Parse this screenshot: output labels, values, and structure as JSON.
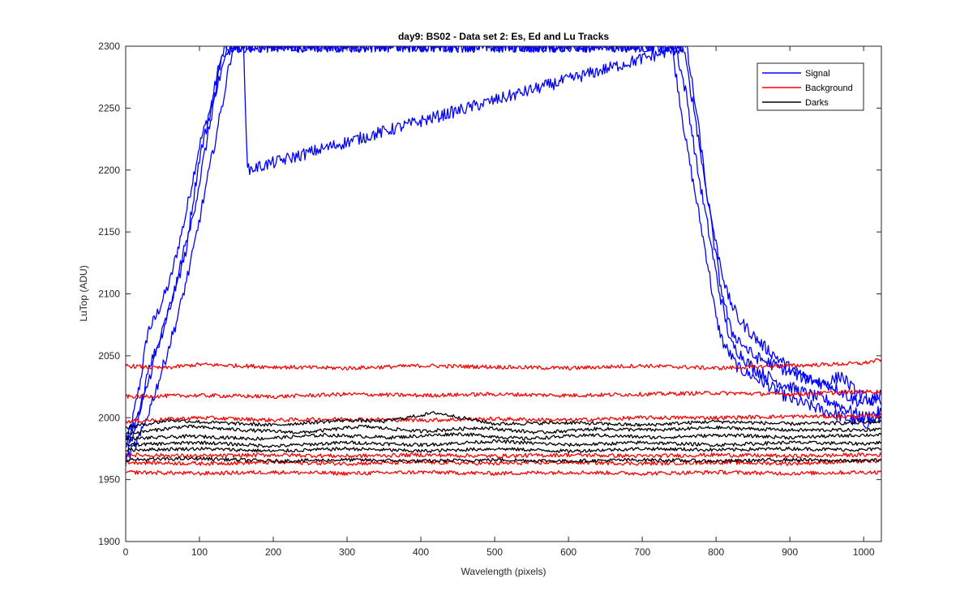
{
  "chart_data": {
    "type": "line",
    "title": "day9: BS02 - Data set 2: Es, Ed and Lu Tracks",
    "xlabel": "Wavelength (pixels)",
    "ylabel": "LuTop (ADU)",
    "xlim": [
      0,
      1024
    ],
    "ylim": [
      1900,
      2300
    ],
    "xticks": [
      0,
      100,
      200,
      300,
      400,
      500,
      600,
      700,
      800,
      900,
      1000
    ],
    "yticks": [
      1900,
      1950,
      2000,
      2050,
      2100,
      2150,
      2200,
      2250,
      2300
    ],
    "grid": false,
    "legend_position": "top-right",
    "legend": [
      {
        "label": "Signal",
        "color": "#0000ff"
      },
      {
        "label": "Background",
        "color": "#ff0000"
      },
      {
        "label": "Darks",
        "color": "#000000"
      }
    ],
    "series": [
      {
        "name": "Signal",
        "group": "Signal",
        "color": "#0000ff",
        "noise": 5,
        "points": [
          [
            0,
            1975
          ],
          [
            10,
            2000
          ],
          [
            20,
            2030
          ],
          [
            30,
            2070
          ],
          [
            40,
            2080
          ],
          [
            60,
            2110
          ],
          [
            80,
            2160
          ],
          [
            100,
            2220
          ],
          [
            115,
            2250
          ],
          [
            125,
            2280
          ],
          [
            135,
            2300
          ],
          [
            740,
            2300
          ],
          [
            745,
            2280
          ],
          [
            760,
            2220
          ],
          [
            775,
            2170
          ],
          [
            790,
            2120
          ],
          [
            800,
            2080
          ],
          [
            810,
            2060
          ],
          [
            830,
            2040
          ],
          [
            860,
            2030
          ],
          [
            900,
            2015
          ],
          [
            950,
            2005
          ],
          [
            1000,
            1995
          ],
          [
            1024,
            2000
          ]
        ]
      },
      {
        "name": "Signal",
        "group": "Signal",
        "color": "#0000ff",
        "noise": 5,
        "points": [
          [
            0,
            1970
          ],
          [
            15,
            1990
          ],
          [
            30,
            2040
          ],
          [
            45,
            2060
          ],
          [
            65,
            2100
          ],
          [
            85,
            2150
          ],
          [
            100,
            2210
          ],
          [
            120,
            2260
          ],
          [
            140,
            2300
          ],
          [
            745,
            2300
          ],
          [
            760,
            2260
          ],
          [
            775,
            2200
          ],
          [
            790,
            2150
          ],
          [
            805,
            2100
          ],
          [
            820,
            2060
          ],
          [
            850,
            2040
          ],
          [
            880,
            2030
          ],
          [
            920,
            2020
          ],
          [
            960,
            2012
          ],
          [
            1000,
            2000
          ],
          [
            1024,
            2005
          ]
        ]
      },
      {
        "name": "Signal",
        "group": "Signal",
        "color": "#0000ff",
        "noise": 5,
        "points": [
          [
            0,
            1980
          ],
          [
            20,
            2005
          ],
          [
            40,
            2050
          ],
          [
            60,
            2090
          ],
          [
            80,
            2130
          ],
          [
            100,
            2190
          ],
          [
            115,
            2240
          ],
          [
            130,
            2290
          ],
          [
            150,
            2300
          ],
          [
            755,
            2300
          ],
          [
            770,
            2250
          ],
          [
            785,
            2190
          ],
          [
            800,
            2140
          ],
          [
            815,
            2100
          ],
          [
            830,
            2080
          ],
          [
            860,
            2060
          ],
          [
            880,
            2050
          ],
          [
            900,
            2040
          ],
          [
            930,
            2030
          ],
          [
            960,
            2025
          ],
          [
            985,
            2015
          ],
          [
            1000,
            2012
          ],
          [
            1024,
            2018
          ]
        ]
      },
      {
        "name": "Signal",
        "group": "Signal",
        "color": "#0000ff",
        "noise": 5,
        "points": [
          [
            0,
            1965
          ],
          [
            20,
            1985
          ],
          [
            45,
            2030
          ],
          [
            70,
            2080
          ],
          [
            90,
            2130
          ],
          [
            110,
            2190
          ],
          [
            130,
            2250
          ],
          [
            145,
            2300
          ],
          [
            160,
            2300
          ],
          [
            165,
            2200
          ],
          [
            760,
            2300
          ],
          [
            775,
            2240
          ],
          [
            790,
            2170
          ],
          [
            805,
            2110
          ],
          [
            820,
            2070
          ],
          [
            850,
            2050
          ],
          [
            880,
            2042
          ],
          [
            920,
            2032
          ],
          [
            950,
            2028
          ],
          [
            970,
            2034
          ],
          [
            990,
            2020
          ],
          [
            1024,
            2010
          ]
        ]
      },
      {
        "name": "Background",
        "group": "Background",
        "color": "#ff0000",
        "noise": 1.6,
        "points": [
          [
            0,
            2042
          ],
          [
            50,
            2040
          ],
          [
            100,
            2043
          ],
          [
            200,
            2041
          ],
          [
            300,
            2040
          ],
          [
            400,
            2042
          ],
          [
            500,
            2041
          ],
          [
            600,
            2040
          ],
          [
            700,
            2042
          ],
          [
            800,
            2040
          ],
          [
            900,
            2042
          ],
          [
            1000,
            2044
          ],
          [
            1024,
            2047
          ]
        ]
      },
      {
        "name": "Background",
        "group": "Background",
        "color": "#ff0000",
        "noise": 1.6,
        "points": [
          [
            0,
            2017
          ],
          [
            100,
            2018
          ],
          [
            200,
            2017
          ],
          [
            300,
            2019
          ],
          [
            400,
            2018
          ],
          [
            500,
            2019
          ],
          [
            600,
            2018
          ],
          [
            700,
            2019
          ],
          [
            800,
            2020
          ],
          [
            900,
            2019
          ],
          [
            1000,
            2021
          ],
          [
            1024,
            2021
          ]
        ]
      },
      {
        "name": "Background",
        "group": "Background",
        "color": "#ff0000",
        "noise": 1.6,
        "points": [
          [
            0,
            1997
          ],
          [
            100,
            2000
          ],
          [
            200,
            1998
          ],
          [
            300,
            1999
          ],
          [
            400,
            1998
          ],
          [
            500,
            1999
          ],
          [
            600,
            1998
          ],
          [
            700,
            2000
          ],
          [
            800,
            2000
          ],
          [
            900,
            2001
          ],
          [
            1000,
            2001
          ],
          [
            1024,
            2002
          ]
        ]
      },
      {
        "name": "Background",
        "group": "Background",
        "color": "#ff0000",
        "noise": 1.6,
        "points": [
          [
            0,
            1970
          ],
          [
            100,
            1969
          ],
          [
            200,
            1970
          ],
          [
            300,
            1969
          ],
          [
            400,
            1970
          ],
          [
            500,
            1969
          ],
          [
            600,
            1970
          ],
          [
            700,
            1969
          ],
          [
            800,
            1970
          ],
          [
            900,
            1969
          ],
          [
            1000,
            1970
          ],
          [
            1024,
            1970
          ]
        ]
      },
      {
        "name": "Background",
        "group": "Background",
        "color": "#ff0000",
        "noise": 1.6,
        "points": [
          [
            0,
            1964
          ],
          [
            100,
            1963
          ],
          [
            200,
            1964
          ],
          [
            300,
            1963
          ],
          [
            400,
            1964
          ],
          [
            500,
            1963
          ],
          [
            600,
            1964
          ],
          [
            700,
            1963
          ],
          [
            800,
            1964
          ],
          [
            900,
            1963
          ],
          [
            1000,
            1965
          ],
          [
            1024,
            1965
          ]
        ]
      },
      {
        "name": "Background",
        "group": "Background",
        "color": "#ff0000",
        "noise": 1.6,
        "points": [
          [
            0,
            1956
          ],
          [
            100,
            1955
          ],
          [
            200,
            1956
          ],
          [
            300,
            1955
          ],
          [
            400,
            1956
          ],
          [
            500,
            1955
          ],
          [
            600,
            1956
          ],
          [
            700,
            1955
          ],
          [
            800,
            1956
          ],
          [
            900,
            1955
          ],
          [
            1000,
            1956
          ],
          [
            1024,
            1956
          ]
        ]
      },
      {
        "name": "Darks",
        "group": "Darks",
        "color": "#000000",
        "noise": 1.4,
        "points": [
          [
            0,
            1992
          ],
          [
            60,
            1998
          ],
          [
            120,
            1996
          ],
          [
            200,
            1994
          ],
          [
            300,
            1998
          ],
          [
            350,
            1997
          ],
          [
            420,
            2004
          ],
          [
            500,
            1995
          ],
          [
            600,
            1996
          ],
          [
            700,
            1994
          ],
          [
            800,
            1997
          ],
          [
            900,
            1995
          ],
          [
            1000,
            1996
          ],
          [
            1024,
            1997
          ]
        ]
      },
      {
        "name": "Darks",
        "group": "Darks",
        "color": "#000000",
        "noise": 1.4,
        "points": [
          [
            0,
            1987
          ],
          [
            80,
            1993
          ],
          [
            160,
            1990
          ],
          [
            240,
            1988
          ],
          [
            320,
            1993
          ],
          [
            400,
            1989
          ],
          [
            480,
            1992
          ],
          [
            560,
            1988
          ],
          [
            640,
            1991
          ],
          [
            720,
            1990
          ],
          [
            800,
            1992
          ],
          [
            900,
            1990
          ],
          [
            1000,
            1990
          ],
          [
            1024,
            1991
          ]
        ]
      },
      {
        "name": "Darks",
        "group": "Darks",
        "color": "#000000",
        "noise": 1.4,
        "points": [
          [
            0,
            1983
          ],
          [
            90,
            1985
          ],
          [
            180,
            1983
          ],
          [
            270,
            1986
          ],
          [
            360,
            1984
          ],
          [
            450,
            1987
          ],
          [
            540,
            1983
          ],
          [
            630,
            1986
          ],
          [
            720,
            1984
          ],
          [
            810,
            1986
          ],
          [
            900,
            1984
          ],
          [
            1000,
            1986
          ],
          [
            1024,
            1986
          ]
        ]
      },
      {
        "name": "Darks",
        "group": "Darks",
        "color": "#000000",
        "noise": 1.4,
        "points": [
          [
            0,
            1978
          ],
          [
            100,
            1980
          ],
          [
            200,
            1977
          ],
          [
            300,
            1980
          ],
          [
            400,
            1978
          ],
          [
            500,
            1981
          ],
          [
            600,
            1978
          ],
          [
            700,
            1980
          ],
          [
            800,
            1978
          ],
          [
            900,
            1980
          ],
          [
            1000,
            1979
          ],
          [
            1024,
            1980
          ]
        ]
      },
      {
        "name": "Darks",
        "group": "Darks",
        "color": "#000000",
        "noise": 1.4,
        "points": [
          [
            0,
            1974
          ],
          [
            100,
            1975
          ],
          [
            200,
            1973
          ],
          [
            300,
            1975
          ],
          [
            400,
            1973
          ],
          [
            500,
            1975
          ],
          [
            600,
            1973
          ],
          [
            700,
            1975
          ],
          [
            800,
            1974
          ],
          [
            900,
            1975
          ],
          [
            1000,
            1974
          ],
          [
            1024,
            1975
          ]
        ]
      },
      {
        "name": "Darks",
        "group": "Darks",
        "color": "#000000",
        "noise": 1.4,
        "points": [
          [
            0,
            1966
          ],
          [
            100,
            1967
          ],
          [
            200,
            1965
          ],
          [
            300,
            1966
          ],
          [
            400,
            1965
          ],
          [
            500,
            1966
          ],
          [
            600,
            1965
          ],
          [
            700,
            1966
          ],
          [
            800,
            1965
          ],
          [
            900,
            1966
          ],
          [
            1000,
            1965
          ],
          [
            1024,
            1966
          ]
        ]
      }
    ]
  }
}
